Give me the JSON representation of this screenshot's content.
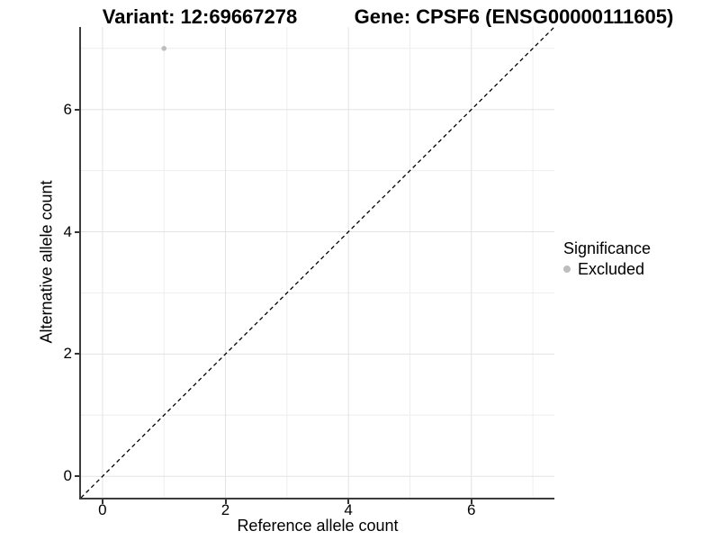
{
  "titles": {
    "left": "Variant: 12:69667278",
    "right": "Gene: CPSF6 (ENSG00000111605)"
  },
  "chart_data": {
    "type": "scatter",
    "title_left": "Variant: 12:69667278",
    "title_right": "Gene: CPSF6 (ENSG00000111605)",
    "xlabel": "Reference allele count",
    "ylabel": "Alternative allele count",
    "xlim": [
      -0.35,
      7.35
    ],
    "ylim": [
      -0.35,
      7.35
    ],
    "x_ticks": [
      0,
      2,
      4,
      6
    ],
    "y_ticks": [
      0,
      2,
      4,
      6
    ],
    "x_minor_gridlines": [
      1,
      3,
      5,
      7
    ],
    "y_minor_gridlines": [
      1,
      3,
      5,
      7
    ],
    "grid": true,
    "series": [
      {
        "name": "Excluded",
        "color": "#bebebe",
        "points": [
          {
            "x": 1,
            "y": 7
          }
        ]
      }
    ],
    "reference_line": {
      "type": "diagonal",
      "from": [
        -0.35,
        -0.35
      ],
      "to": [
        7.35,
        7.35
      ],
      "style": "dashed",
      "color": "#000000"
    },
    "legend": {
      "title": "Significance",
      "position": "right",
      "items": [
        {
          "label": "Excluded",
          "color": "#bebebe"
        }
      ]
    }
  },
  "colors": {
    "background": "#ffffff",
    "axis_line": "#3c3c3c",
    "tick_mark": "#333333",
    "grid_major": "#e3e3e3",
    "grid_minor": "#eeeeee",
    "point_excluded": "#bebebe",
    "text": "#000000"
  }
}
